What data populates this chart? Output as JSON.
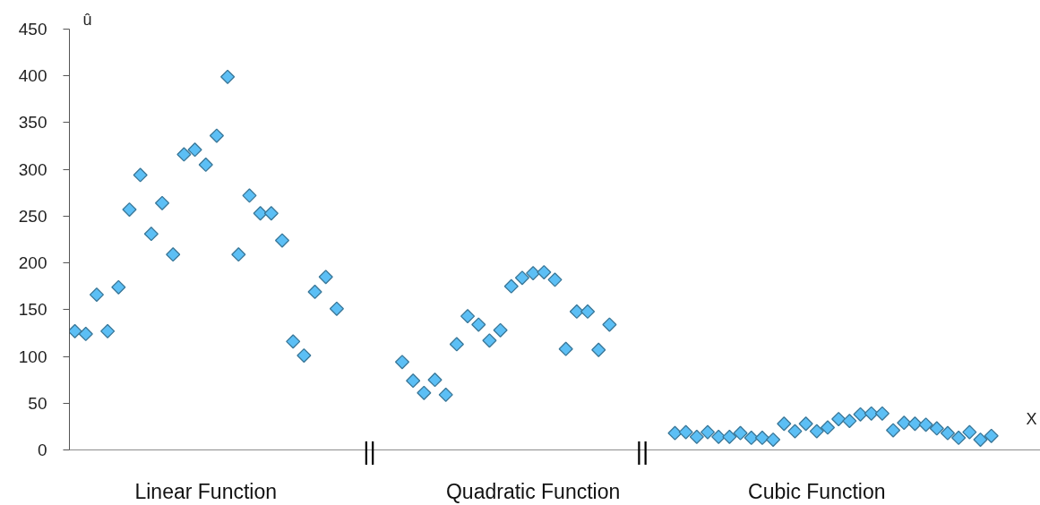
{
  "chart_data": {
    "type": "scatter",
    "xlabel": "X",
    "ylabel": "û",
    "categories": [
      null,
      null,
      null,
      null,
      null,
      null,
      null,
      null,
      null,
      null,
      null,
      null,
      "Linear Function",
      null,
      null,
      null,
      null,
      null,
      null,
      null,
      null,
      null,
      null,
      null,
      null,
      null,
      null,
      null,
      null,
      null,
      null,
      null,
      null,
      null,
      null,
      null,
      null,
      null,
      null,
      null,
      null,
      null,
      "Quadratic Function",
      null,
      null,
      null,
      null,
      null,
      null,
      null,
      null,
      null,
      null,
      null,
      null,
      null,
      null,
      null,
      null,
      null,
      null,
      null,
      null,
      null,
      null,
      null,
      null,
      null,
      "Cubic Function",
      null,
      null,
      null,
      null,
      null,
      null,
      null,
      null,
      null,
      null,
      null,
      null,
      null,
      null,
      null,
      null,
      null,
      null,
      null,
      null
    ],
    "color": "#5cbff5",
    "values": [
      127,
      124,
      166,
      127,
      174,
      257,
      294,
      231,
      264,
      209,
      316,
      321,
      305,
      336,
      399,
      209,
      272,
      253,
      253,
      224,
      116,
      101,
      169,
      185,
      151,
      null,
      null,
      null,
      null,
      null,
      94,
      74,
      61,
      75,
      59,
      113,
      143,
      134,
      117,
      128,
      175,
      184,
      189,
      190,
      182,
      108,
      148,
      148,
      107,
      134,
      null,
      null,
      null,
      null,
      null,
      18,
      19,
      14,
      19,
      14,
      14,
      18,
      13,
      13,
      11,
      28,
      20,
      28,
      20,
      24,
      33,
      31,
      38,
      39,
      39,
      21,
      29,
      28,
      27,
      23,
      18,
      13,
      19,
      11,
      15,
      null,
      null,
      null,
      null
    ],
    "ylim": [
      0,
      450
    ],
    "yticks": [
      0,
      50,
      100,
      150,
      200,
      250,
      300,
      350,
      400,
      450
    ],
    "grid": false,
    "marker": "diamond",
    "annotations": [
      "||",
      "||"
    ]
  }
}
